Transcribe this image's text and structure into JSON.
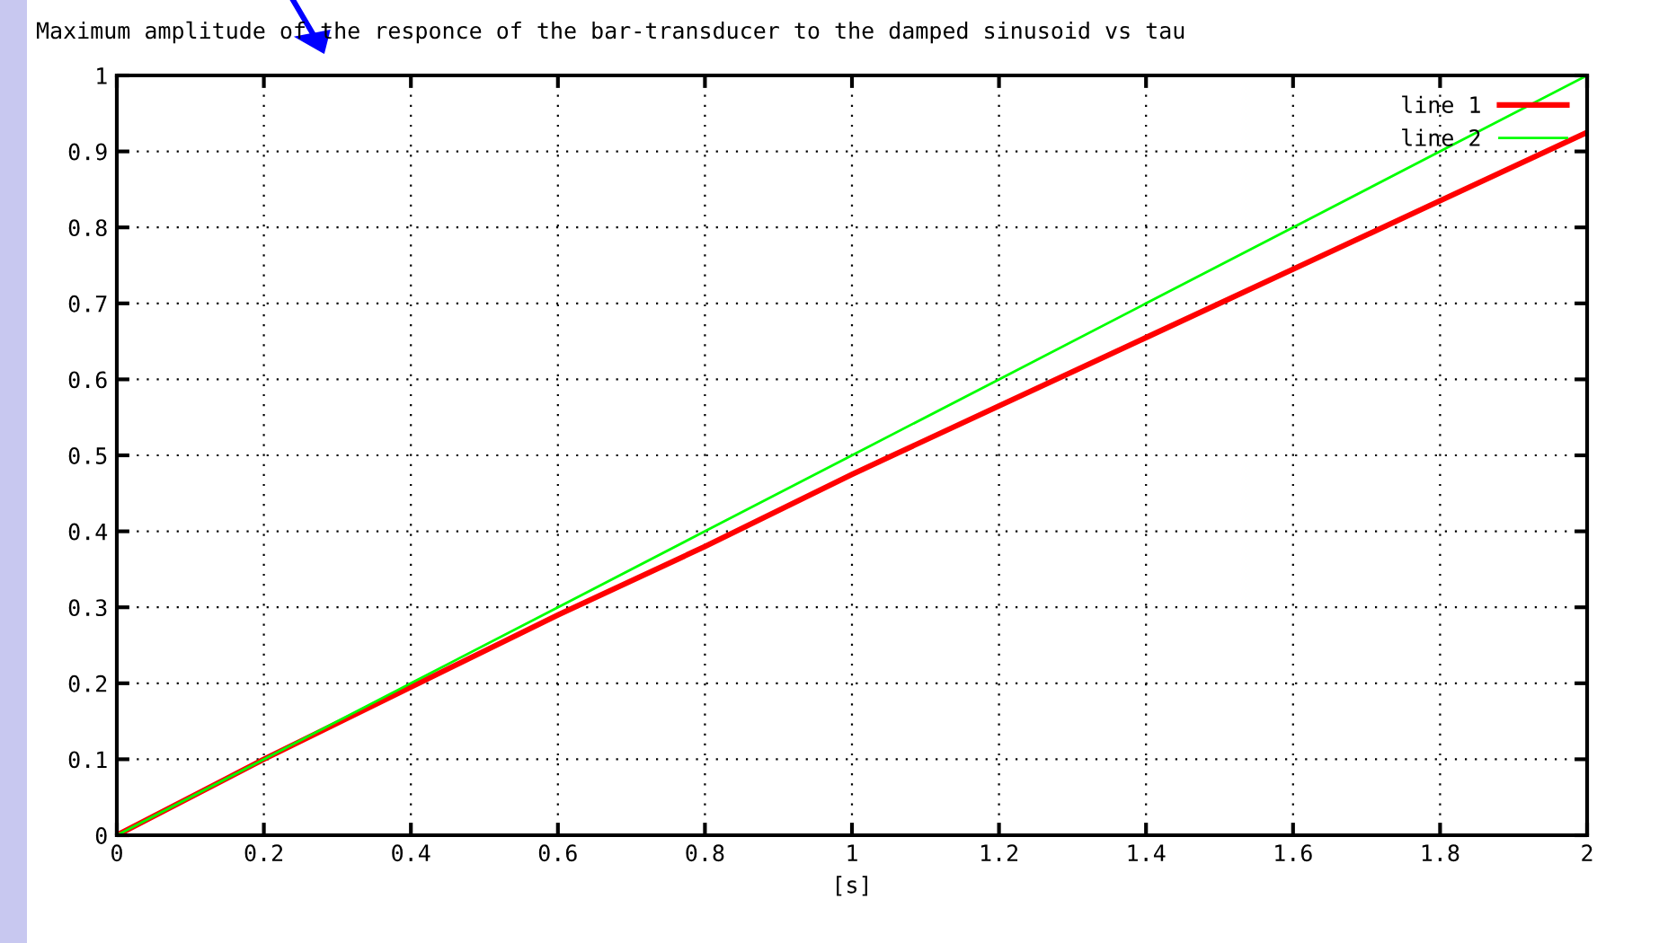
{
  "chart_data": {
    "type": "line",
    "title": "Maximum amplitude of the responce of the bar-transducer to the damped sinusoid vs tau",
    "xlabel": "[s]",
    "x": [
      0,
      0.2,
      0.4,
      0.6,
      0.8,
      1.0,
      1.2,
      1.4,
      1.6,
      1.8,
      2.0
    ],
    "series": [
      {
        "name": "line 1",
        "color": "#ff0000",
        "values": [
          0,
          0.1,
          0.195,
          0.29,
          0.38,
          0.475,
          0.565,
          0.655,
          0.745,
          0.835,
          0.925
        ]
      },
      {
        "name": "line 2",
        "color": "#00ff00",
        "values": [
          0,
          0.1,
          0.2,
          0.3,
          0.4,
          0.5,
          0.6,
          0.7,
          0.8,
          0.9,
          1.0
        ]
      }
    ],
    "xlim": [
      0,
      2
    ],
    "ylim": [
      0,
      1
    ],
    "xticks": [
      0,
      0.2,
      0.4,
      0.6,
      0.8,
      1,
      1.2,
      1.4,
      1.6,
      1.8,
      2
    ],
    "yticks": [
      0,
      0.1,
      0.2,
      0.3,
      0.4,
      0.5,
      0.6,
      0.7,
      0.8,
      0.9,
      1
    ],
    "grid": true,
    "legend": "top right",
    "line_style": "solid"
  }
}
